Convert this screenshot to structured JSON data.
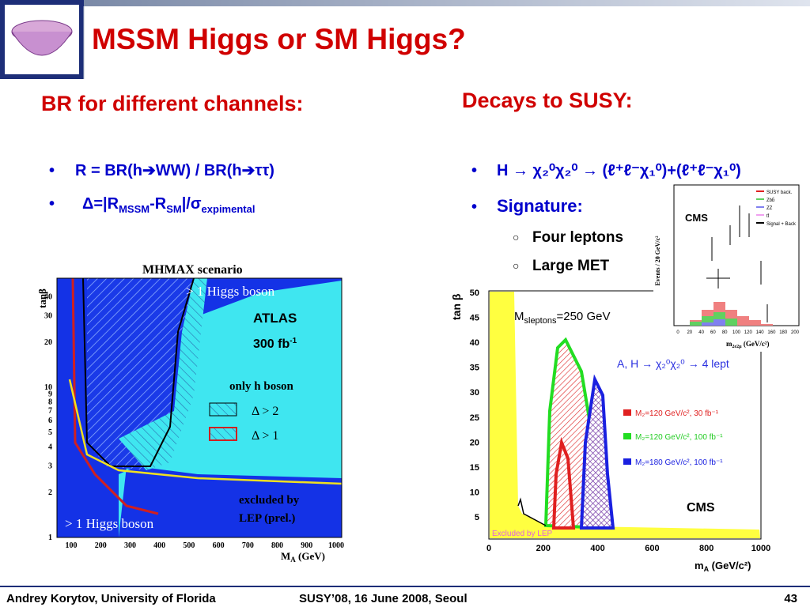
{
  "header": {
    "title": "MSSM Higgs or SM Higgs?"
  },
  "left": {
    "heading": "BR for different channels:",
    "bullets": [
      [
        "R = BR(h",
        "WW) / BR(h",
        "ττ)"
      ],
      [
        "Δ=|R",
        "MSSM",
        "-R",
        "SM",
        "|/σ",
        "expimental"
      ]
    ],
    "figure": {
      "title": "MHMAX scenario",
      "y_label": "tanβ",
      "x_label": "M",
      "x_label_sub": "A",
      "x_label_unit": " (GeV)",
      "xticks": [
        100,
        200,
        300,
        400,
        500,
        600,
        700,
        800,
        900,
        1000
      ],
      "yticks": [
        1,
        2,
        3,
        4,
        5,
        6,
        7,
        8,
        9,
        10,
        20,
        30,
        40
      ],
      "labels": {
        "top": "> 1 Higgs boson",
        "bottom": "> 1 Higgs boson",
        "experiment": "ATLAS",
        "lumi": "300 fb",
        "lumi_sup": "-1",
        "only_h": "only h boson",
        "delta2": "Δ > 2",
        "delta1": "Δ > 1",
        "lep1": "excluded by",
        "lep2": "LEP (prel.)"
      }
    }
  },
  "right": {
    "heading": "Decays to SUSY:",
    "bullets": [
      "H → χ₂⁰χ₂⁰ → (ℓ⁺ℓ⁻χ₁⁰)+(ℓ⁺ℓ⁻χ₁⁰)",
      "Signature:"
    ],
    "sub_bullets": [
      "Four leptons",
      "Large MET"
    ],
    "figure": {
      "y_label": "tan β",
      "x_label": "m",
      "x_label_sub": "A",
      "x_label_unit": " (GeV/c²)",
      "xticks": [
        0,
        200,
        400,
        600,
        800,
        1000
      ],
      "yticks": [
        5,
        10,
        15,
        20,
        25,
        30,
        35,
        40,
        45,
        50
      ],
      "slepton": "M",
      "slepton_sub": "sleptons",
      "slepton_val": "=250 GeV",
      "channel": "A, H → χ₂⁰χ₂⁰ → 4 lept",
      "legend": [
        "M₂=120 GeV/c², 30 fb⁻¹",
        "M₂=120 GeV/c², 100 fb⁻¹",
        "M₂=180 GeV/c², 100 fb⁻¹"
      ],
      "experiment": "CMS",
      "lep": "Excluded by LEP"
    },
    "inset": {
      "experiment": "CMS",
      "legend": [
        "SUSY back.",
        "Zbb̄",
        "ZZ",
        "tt̄",
        "Signal + Back"
      ],
      "y_label": "Events / 20 GeV/c²",
      "x_label": "m",
      "x_label_sub": "2e2μ",
      "x_label_unit": " (GeV/c²)",
      "xticks": [
        0,
        20,
        40,
        60,
        80,
        100,
        120,
        140,
        160,
        180,
        200
      ]
    }
  },
  "footer": {
    "author": "Andrey Korytov, University of Florida",
    "event": "SUSY’08, 16 June 2008, Seoul",
    "page": "43"
  }
}
